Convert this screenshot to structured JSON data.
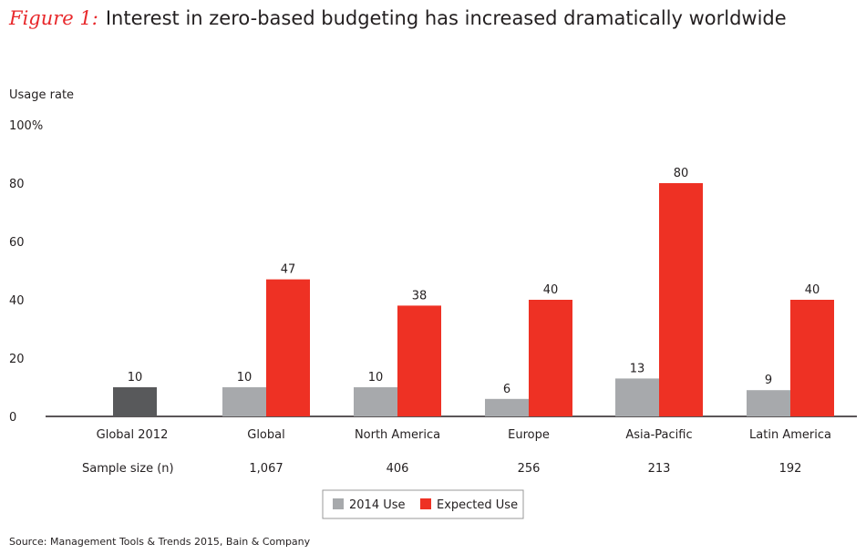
{
  "title": {
    "figure_label": "Figure 1:",
    "text": "Interest in zero-based budgeting has increased dramatically worldwide"
  },
  "source": "Source: Management Tools & Trends 2015, Bain & Company",
  "chart_data": {
    "type": "bar",
    "title": "Interest in zero-based budgeting has increased dramatically worldwide",
    "ylabel": "Usage rate",
    "ylim": [
      0,
      100
    ],
    "yticks": [
      "0",
      "20",
      "40",
      "60",
      "80",
      "100%"
    ],
    "ytick_values": [
      0,
      20,
      40,
      60,
      80,
      100
    ],
    "grid": false,
    "categories": [
      "Global 2012",
      "Global",
      "North America",
      "Europe",
      "Asia-Pacific",
      "Latin America"
    ],
    "sample_size_label": "Sample size (n)",
    "sample_sizes": [
      "",
      "1,067",
      "406",
      "256",
      "213",
      "192"
    ],
    "global_2012": {
      "value": 10,
      "color": "#58595b"
    },
    "series": [
      {
        "name": "2014 Use",
        "color": "#a7a9ac",
        "values": [
          null,
          10,
          10,
          6,
          13,
          9
        ]
      },
      {
        "name": "Expected Use",
        "color": "#ee3124",
        "values": [
          null,
          47,
          38,
          40,
          80,
          40
        ]
      }
    ],
    "legend_position": "bottom"
  }
}
